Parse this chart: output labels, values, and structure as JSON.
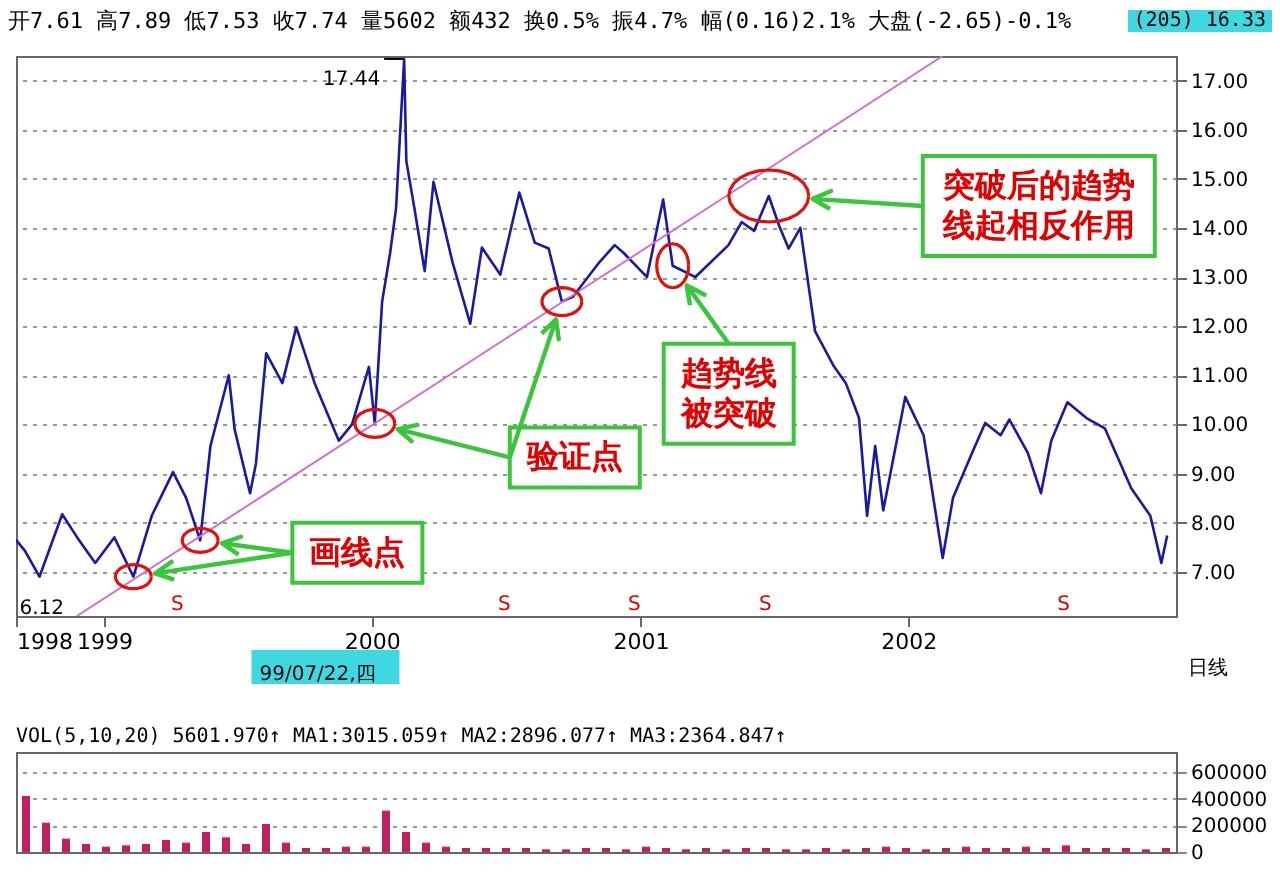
{
  "chart_data": [
    {
      "type": "line",
      "subtitle": "开7.61 高7.89 低7.53 收7.74 量5602 额432 换0.5% 振4.7% 幅(0.16)2.1% 大盘(-2.65)-0.1%",
      "series": [
        {
          "color": "#1a1aa0",
          "x": [
            "1998-09-03",
            "1998-09-15",
            "1998-10-05",
            "1998-11-05",
            "1998-11-28",
            "1998-12-20",
            "1999-01-15",
            "1999-02-10",
            "1999-03-07",
            "1999-04-05",
            "1999-04-23",
            "1999-05-12",
            "1999-05-26",
            "1999-06-20",
            "1999-06-28",
            "1999-07-19",
            "1999-07-27",
            "1999-08-10",
            "1999-09-01",
            "1999-09-20",
            "1999-10-15",
            "1999-11-17",
            "1999-12-05",
            "1999-12-28",
            "2000-01-05",
            "2000-01-15",
            "2000-01-26",
            "2000-02-03",
            "2000-02-14",
            "2000-02-17",
            "2000-02-28",
            "2000-03-13",
            "2000-03-25",
            "2000-04-20",
            "2000-05-14",
            "2000-05-30",
            "2000-06-24",
            "2000-07-20",
            "2000-08-10",
            "2000-08-29",
            "2000-09-16",
            "2000-10-01",
            "2000-11-06",
            "2000-11-27",
            "2000-12-10",
            "2001-01-10",
            "2001-02-01",
            "2001-02-14",
            "2001-03-17",
            "2001-05-01",
            "2001-05-19",
            "2001-06-05",
            "2001-06-25",
            "2001-07-09",
            "2001-07-22",
            "2001-08-07",
            "2001-08-27",
            "2001-09-21",
            "2001-10-08",
            "2001-10-26",
            "2001-11-06",
            "2001-11-17",
            "2001-11-28",
            "2001-12-28",
            "2002-01-22",
            "2002-02-17",
            "2002-03-03",
            "2002-03-29",
            "2002-04-16",
            "2002-05-07",
            "2002-05-19",
            "2002-06-13",
            "2002-07-01",
            "2002-07-15",
            "2002-08-06",
            "2002-09-01",
            "2002-09-26",
            "2002-11-01",
            "2002-11-27",
            "2002-12-12",
            "2002-12-20"
          ],
          "values": [
            7.65,
            7.43,
            6.9,
            8.17,
            7.64,
            7.18,
            7.7,
            6.9,
            8.14,
            9.03,
            8.5,
            7.64,
            9.56,
            11.0,
            9.9,
            8.6,
            9.2,
            11.45,
            10.84,
            11.98,
            10.84,
            9.67,
            10.0,
            11.17,
            10.02,
            12.5,
            13.5,
            14.4,
            17.44,
            15.36,
            14.4,
            13.12,
            14.94,
            13.3,
            12.05,
            13.6,
            13.05,
            14.72,
            13.7,
            13.58,
            12.5,
            12.6,
            13.3,
            13.65,
            13.48,
            13.0,
            14.58,
            13.23,
            13.0,
            13.65,
            14.12,
            13.94,
            14.65,
            14.05,
            13.58,
            14.0,
            11.9,
            11.2,
            10.84,
            10.13,
            8.14,
            9.56,
            8.25,
            10.56,
            9.78,
            7.28,
            8.5,
            9.42,
            10.03,
            9.78,
            10.1,
            9.42,
            8.6,
            9.67,
            10.45,
            10.13,
            9.92,
            8.7,
            8.14,
            7.18,
            7.74
          ]
        },
        {
          "type": "line",
          "color": "#d070d0",
          "x": [
            "1998-11-25",
            "2002-02-17"
          ],
          "values": [
            6.1,
            17.5
          ]
        }
      ],
      "xlim": [
        "1998-09-03",
        "2003-01-01"
      ],
      "xticks": [
        {
          "value": "1998-09-03",
          "label": "1998"
        },
        {
          "value": "1999-01-01",
          "label": "1999"
        },
        {
          "value": "2000-01-01",
          "label": "2000"
        },
        {
          "value": "2001-01-01",
          "label": "2001"
        },
        {
          "value": "2002-01-01",
          "label": "2002"
        }
      ],
      "ylim": [
        6.1,
        17.5
      ],
      "yticks": [
        {
          "value": 7,
          "label": "7.00"
        },
        {
          "value": 8,
          "label": "8.00"
        },
        {
          "value": 9,
          "label": "9.00"
        },
        {
          "value": 10,
          "label": "10.00"
        },
        {
          "value": 11,
          "label": "11.00"
        },
        {
          "value": 12,
          "label": "12.00"
        },
        {
          "value": 13,
          "label": "13.00"
        },
        {
          "value": 14,
          "label": "14.00"
        },
        {
          "value": 15,
          "label": "15.00"
        },
        {
          "value": 16,
          "label": "16.00"
        },
        {
          "value": 17,
          "label": "17.00"
        }
      ],
      "grid": "y",
      "annotations": [
        {
          "text": "17.44",
          "x": "2000-02-14",
          "y": 17.44
        },
        "6.12",
        "画线点",
        "验证点",
        {
          "text": "趋势线被突破",
          "x": "2001-02-14",
          "y": 13.23
        },
        "突破后的趋势线起相反作用",
        "99/07/22,四",
        "日线",
        "(205)",
        "16.33",
        "S",
        "S",
        "S",
        "S",
        "S"
      ]
    },
    {
      "type": "bar",
      "title": "VOL(5,10,20) 5601.970↑ MA1:3015.059↑ MA2:2896.077↑ MA3:2364.847↑",
      "color": "#c02060",
      "categories": [
        null,
        null,
        null,
        null,
        null,
        null,
        null,
        null,
        null,
        null,
        null,
        null,
        null,
        null,
        null,
        null,
        null,
        null,
        null,
        null,
        null,
        null,
        null,
        null,
        null,
        null,
        null,
        null,
        null,
        null,
        null,
        null,
        null,
        null,
        null,
        null,
        null,
        null,
        null,
        null,
        null,
        null,
        null,
        null,
        null,
        null,
        null,
        null,
        null,
        null,
        null,
        null,
        null,
        null,
        null,
        null,
        null,
        null
      ],
      "values": [
        420000,
        220000,
        100000,
        60000,
        40000,
        50000,
        60000,
        90000,
        70000,
        150000,
        110000,
        60000,
        210000,
        70000,
        30000,
        30000,
        40000,
        40000,
        310000,
        150000,
        70000,
        40000,
        30000,
        30000,
        30000,
        30000,
        20000,
        20000,
        30000,
        30000,
        20000,
        40000,
        30000,
        20000,
        30000,
        20000,
        30000,
        30000,
        20000,
        20000,
        30000,
        20000,
        30000,
        40000,
        30000,
        20000,
        30000,
        40000,
        30000,
        30000,
        40000,
        30000,
        50000,
        30000,
        30000,
        30000,
        20000,
        30000
      ],
      "ylim": [
        0,
        750000
      ],
      "yticks": [
        0,
        200000,
        400000,
        600000
      ],
      "grid": "y",
      "tick_labels": "y"
    }
  ]
}
